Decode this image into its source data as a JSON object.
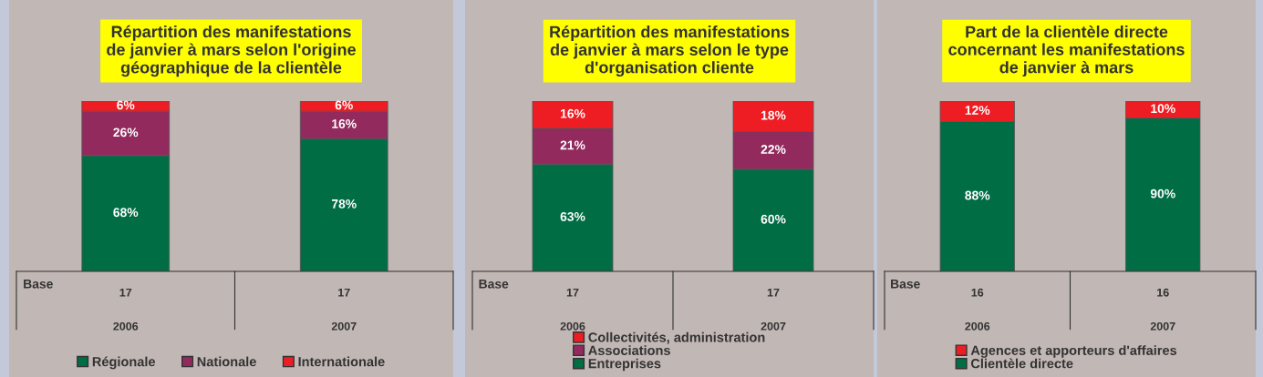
{
  "chart_data": [
    {
      "type": "bar",
      "stacked": true,
      "title": "Répartition des manifestations\nde janvier à mars selon l'origine\ngéographique de la clientèle",
      "categories": [
        "2006",
        "2007"
      ],
      "ylim": [
        0,
        100
      ],
      "legend": "bottom",
      "annotations": [
        "Base",
        "17",
        "17"
      ],
      "series": [
        {
          "name": "Régionale",
          "color": "#006d45",
          "values": [
            68,
            78
          ],
          "value_labels": [
            "68%",
            "78%"
          ]
        },
        {
          "name": "Nationale",
          "color": "#922a5e",
          "values": [
            26,
            16
          ],
          "value_labels": [
            "26%",
            "16%"
          ]
        },
        {
          "name": "Internationale",
          "color": "#ee1d24",
          "values": [
            6,
            6
          ],
          "value_labels": [
            "6%",
            "6%"
          ]
        }
      ]
    },
    {
      "type": "bar",
      "stacked": true,
      "title": "Répartition des manifestations\nde janvier à mars selon le type\nd'organisation cliente",
      "categories": [
        "2006",
        "2007"
      ],
      "ylim": [
        0,
        100
      ],
      "legend": "bottom",
      "annotations": [
        "Base",
        "17",
        "17"
      ],
      "series": [
        {
          "name": "Entreprises",
          "color": "#006d45",
          "values": [
            63,
            60
          ],
          "value_labels": [
            "63%",
            "60%"
          ]
        },
        {
          "name": "Associations",
          "color": "#922a5e",
          "values": [
            21,
            22
          ],
          "value_labels": [
            "21%",
            "22%"
          ]
        },
        {
          "name": "Collectivités, administration",
          "color": "#ee1d24",
          "values": [
            16,
            18
          ],
          "value_labels": [
            "16%",
            "18%"
          ]
        }
      ]
    },
    {
      "type": "bar",
      "stacked": true,
      "title": "Part de la clientèle directe\nconcernant les manifestations\nde janvier à mars",
      "categories": [
        "2006",
        "2007"
      ],
      "ylim": [
        0,
        100
      ],
      "legend": "bottom",
      "annotations": [
        "Base",
        "16",
        "16"
      ],
      "series": [
        {
          "name": "Clientèle directe",
          "color": "#006d45",
          "values": [
            88,
            90
          ],
          "value_labels": [
            "88%",
            "90%"
          ]
        },
        {
          "name": "Agences et apporteurs d'affaires",
          "color": "#ee1d24",
          "values": [
            12,
            10
          ],
          "value_labels": [
            "12%",
            "10%"
          ]
        }
      ]
    }
  ]
}
